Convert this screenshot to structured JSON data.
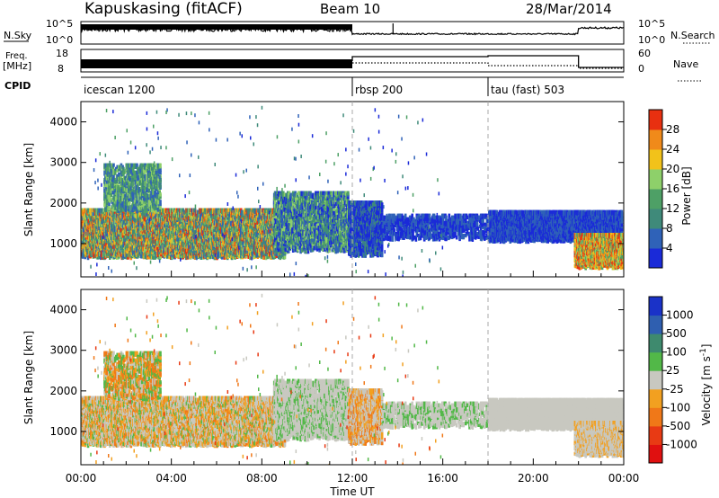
{
  "header": {
    "station": "Kapuskasing (fitACF)",
    "beam": "Beam 10",
    "date": "28/Mar/2014"
  },
  "labels": {
    "nsky": "N.Sky",
    "nsky_ticks": [
      "10^5",
      "10^0"
    ],
    "nsearch": "N.Search",
    "nsearch_ticks": [
      "10^5",
      "10^0"
    ],
    "freq": "Freq.",
    "freq_unit": "[MHz]",
    "freq_ticks": [
      "18",
      "8"
    ],
    "nave": "Nave",
    "nave_ticks": [
      "60",
      "0"
    ],
    "cpid": "CPID"
  },
  "cpid_segments": [
    {
      "name": "icescan 1200",
      "start_h": 0,
      "end_h": 12
    },
    {
      "name": "rbsp 200",
      "start_h": 12,
      "end_h": 18
    },
    {
      "name": "tau (fast) 503",
      "start_h": 18,
      "end_h": 24
    }
  ],
  "chart_data": [
    {
      "type": "heatmap",
      "title": "Power",
      "xlabel": "",
      "ylabel": "Slant Range [km]",
      "xlim": [
        "00:00",
        "00:00"
      ],
      "x_ticks": [
        "00:00",
        "04:00",
        "08:00",
        "12:00",
        "16:00",
        "20:00",
        "00:00"
      ],
      "ylim": [
        180,
        4500
      ],
      "y_ticks": [
        1000,
        2000,
        3000,
        4000
      ],
      "colorbar": {
        "label": "Power [dB]",
        "ticks": [
          4,
          8,
          12,
          16,
          20,
          24,
          28
        ],
        "colors": [
          "#1a2ad8",
          "#2f62b8",
          "#3f8a7a",
          "#4ea066",
          "#8ed06a",
          "#f2c21a",
          "#f08a1a",
          "#e83010"
        ]
      }
    },
    {
      "type": "heatmap",
      "title": "Velocity",
      "xlabel": "Time UT",
      "ylabel": "Slant Range [km]",
      "xlim": [
        "00:00",
        "00:00"
      ],
      "x_ticks": [
        "00:00",
        "04:00",
        "08:00",
        "12:00",
        "16:00",
        "20:00",
        "00:00"
      ],
      "ylim": [
        180,
        4500
      ],
      "y_ticks": [
        1000,
        2000,
        3000,
        4000
      ],
      "colorbar": {
        "label": "Velocity [m s^-1]",
        "ticks": [
          "1000",
          "500",
          "100",
          "25",
          "-25",
          "-100",
          "-500",
          "-1000"
        ],
        "colors": [
          "#1a32c8",
          "#2f5fb0",
          "#3e8a6e",
          "#52b848",
          "#c8c8c0",
          "#f2a020",
          "#f07818",
          "#e83a14",
          "#e01010"
        ]
      }
    }
  ]
}
